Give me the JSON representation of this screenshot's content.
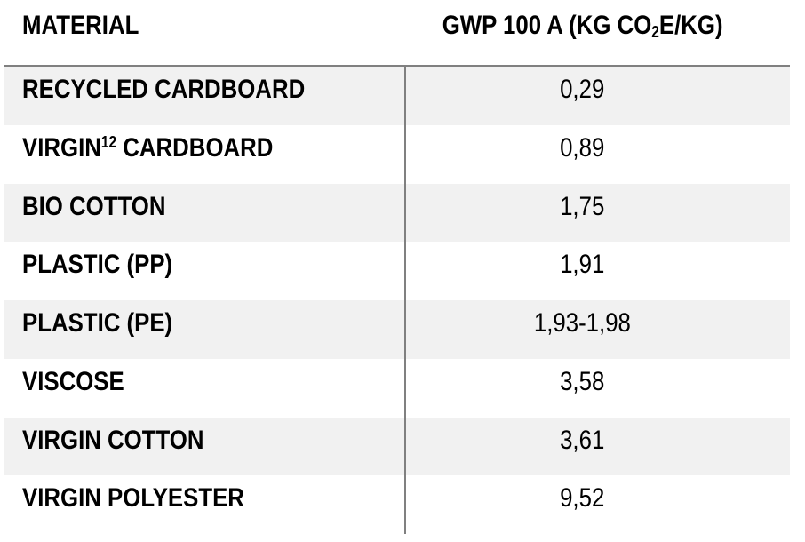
{
  "table": {
    "header": {
      "material": "MATERIAL",
      "gwp_pre": "GWP 100 A (KG CO",
      "gwp_sub": "2",
      "gwp_post": "E/KG)"
    },
    "rows": [
      {
        "material": "RECYCLED CARDBOARD",
        "value": "0,29",
        "shaded": true
      },
      {
        "material_pre": "VIRGIN",
        "material_sup": "12",
        "material_post": " CARDBOARD",
        "value": "0,89",
        "shaded": false
      },
      {
        "material": "BIO COTTON",
        "value": "1,75",
        "shaded": true
      },
      {
        "material": "PLASTIC (PP)",
        "value": "1,91",
        "shaded": false
      },
      {
        "material": "PLASTIC (PE)",
        "value": "1,93-1,98",
        "shaded": true
      },
      {
        "material": "VISCOSE",
        "value": "3,58",
        "shaded": false
      },
      {
        "material": "VIRGIN COTTON",
        "value": "3,61",
        "shaded": true
      },
      {
        "material": "VIRGIN POLYESTER",
        "value": "9,52",
        "shaded": false
      }
    ]
  },
  "colors": {
    "row_shade": "#f1f1f1",
    "divider": "#808080",
    "text": "#000000",
    "background": "#ffffff"
  },
  "chart_data": {
    "type": "table",
    "title": "",
    "columns": [
      "MATERIAL",
      "GWP 100 A (KG CO2E/KG)"
    ],
    "rows": [
      [
        "RECYCLED CARDBOARD",
        "0,29"
      ],
      [
        "VIRGIN(12) CARDBOARD",
        "0,89"
      ],
      [
        "BIO COTTON",
        "1,75"
      ],
      [
        "PLASTIC (PP)",
        "1,91"
      ],
      [
        "PLASTIC (PE)",
        "1,93-1,98"
      ],
      [
        "VISCOSE",
        "3,58"
      ],
      [
        "VIRGIN COTTON",
        "3,61"
      ],
      [
        "VIRGIN POLYESTER",
        "9,52"
      ]
    ],
    "values_numeric": [
      0.29,
      0.89,
      1.75,
      1.91,
      [
        1.93,
        1.98
      ],
      3.58,
      3.61,
      9.52
    ],
    "notes": "decimal comma formatting; superscript 12 is a footnote reference on VIRGIN CARDBOARD; subscript 2 in CO2E"
  }
}
